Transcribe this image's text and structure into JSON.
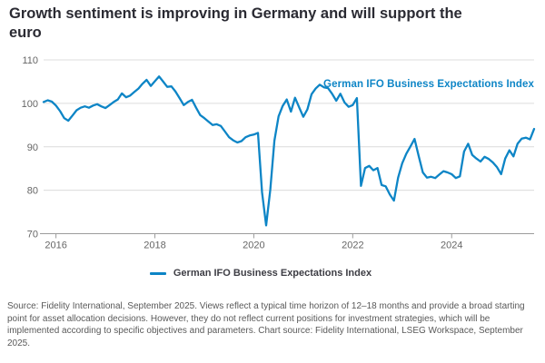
{
  "title": "Growth sentiment is improving in Germany and will support the euro",
  "annotation": {
    "text": "German IFO Business Expectations Index",
    "color": "#0d85c6"
  },
  "legend": {
    "label": "German IFO Business Expectations Index",
    "line_color": "#0d85c6"
  },
  "footer": {
    "text": "Source: Fidelity International, September 2025. Views reflect a typical time horizon of 12–18 months and provide a broad starting point for asset allocation decisions. However, they do not reflect current positions for investment strategies, which will be implemented according to specific objectives and parameters. Chart source: Fidelity International, LSEG Workspace, September 2025."
  },
  "colors": {
    "line": "#0d85c6",
    "grid": "#dcdcdc",
    "axis": "#9b9b9b",
    "axis_label": "#666666",
    "title_text": "#2a2a32",
    "footer_text": "#595959"
  },
  "chart_data": {
    "type": "line",
    "title": "Growth sentiment is improving in Germany and will support the euro",
    "xlabel": "",
    "ylabel": "",
    "ylim": [
      70,
      110
    ],
    "y_ticks": [
      110,
      100,
      90,
      80,
      70
    ],
    "grid": "horizontal",
    "legend_position": "bottom-center",
    "x_ticks": [
      {
        "label": "2016",
        "index": 3
      },
      {
        "label": "2018",
        "index": 27
      },
      {
        "label": "2020",
        "index": 51
      },
      {
        "label": "2022",
        "index": 75
      },
      {
        "label": "2024",
        "index": 99
      }
    ],
    "x": [
      "2015-10",
      "2015-11",
      "2015-12",
      "2016-01",
      "2016-02",
      "2016-03",
      "2016-04",
      "2016-05",
      "2016-06",
      "2016-07",
      "2016-08",
      "2016-09",
      "2016-10",
      "2016-11",
      "2016-12",
      "2017-01",
      "2017-02",
      "2017-03",
      "2017-04",
      "2017-05",
      "2017-06",
      "2017-07",
      "2017-08",
      "2017-09",
      "2017-10",
      "2017-11",
      "2017-12",
      "2018-01",
      "2018-02",
      "2018-03",
      "2018-04",
      "2018-05",
      "2018-06",
      "2018-07",
      "2018-08",
      "2018-09",
      "2018-10",
      "2018-11",
      "2018-12",
      "2019-01",
      "2019-02",
      "2019-03",
      "2019-04",
      "2019-05",
      "2019-06",
      "2019-07",
      "2019-08",
      "2019-09",
      "2019-10",
      "2019-11",
      "2019-12",
      "2020-01",
      "2020-02",
      "2020-03",
      "2020-04",
      "2020-05",
      "2020-06",
      "2020-07",
      "2020-08",
      "2020-09",
      "2020-10",
      "2020-11",
      "2020-12",
      "2021-01",
      "2021-02",
      "2021-03",
      "2021-04",
      "2021-05",
      "2021-06",
      "2021-07",
      "2021-08",
      "2021-09",
      "2021-10",
      "2021-11",
      "2021-12",
      "2022-01",
      "2022-02",
      "2022-03",
      "2022-04",
      "2022-05",
      "2022-06",
      "2022-07",
      "2022-08",
      "2022-09",
      "2022-10",
      "2022-11",
      "2022-12",
      "2023-01",
      "2023-02",
      "2023-03",
      "2023-04",
      "2023-05",
      "2023-06",
      "2023-07",
      "2023-08",
      "2023-09",
      "2023-10",
      "2023-11",
      "2023-12",
      "2024-01",
      "2024-02",
      "2024-03",
      "2024-04",
      "2024-05",
      "2024-06",
      "2024-07",
      "2024-08",
      "2024-09",
      "2024-10",
      "2024-11",
      "2024-12",
      "2025-01",
      "2025-02",
      "2025-03",
      "2025-04",
      "2025-05",
      "2025-06",
      "2025-07",
      "2025-08",
      "2025-09"
    ],
    "series": [
      {
        "name": "German IFO Business Expectations Index",
        "color": "#0d85c6",
        "values": [
          100.3,
          100.7,
          100.4,
          99.5,
          98.2,
          96.6,
          96.0,
          97.2,
          98.4,
          99.0,
          99.3,
          99.0,
          99.5,
          99.8,
          99.3,
          98.9,
          99.6,
          100.3,
          100.9,
          102.3,
          101.4,
          101.8,
          102.6,
          103.4,
          104.5,
          105.4,
          104.0,
          105.1,
          106.2,
          105.0,
          103.8,
          103.9,
          102.7,
          101.2,
          99.6,
          100.3,
          100.8,
          99.0,
          97.3,
          96.6,
          95.8,
          95.0,
          95.2,
          94.8,
          93.5,
          92.2,
          91.5,
          91.0,
          91.3,
          92.2,
          92.6,
          92.8,
          93.2,
          79.5,
          71.9,
          80.2,
          91.4,
          97.0,
          99.4,
          100.9,
          98.1,
          101.3,
          99.1,
          96.9,
          98.6,
          102.1,
          103.4,
          104.3,
          103.7,
          103.5,
          102.2,
          100.6,
          102.2,
          100.2,
          99.2,
          99.6,
          101.2,
          81.0,
          85.1,
          85.6,
          84.6,
          85.1,
          81.2,
          80.9,
          79.0,
          77.6,
          82.9,
          86.2,
          88.4,
          90.1,
          91.8,
          87.9,
          84.1,
          82.9,
          83.1,
          82.8,
          83.6,
          84.4,
          84.1,
          83.7,
          82.8,
          83.2,
          88.9,
          90.7,
          88.1,
          87.3,
          86.6,
          87.7,
          87.2,
          86.4,
          85.3,
          83.7,
          87.3,
          89.2,
          87.8,
          90.7,
          91.9,
          92.1,
          91.7,
          94.1
        ]
      }
    ]
  }
}
